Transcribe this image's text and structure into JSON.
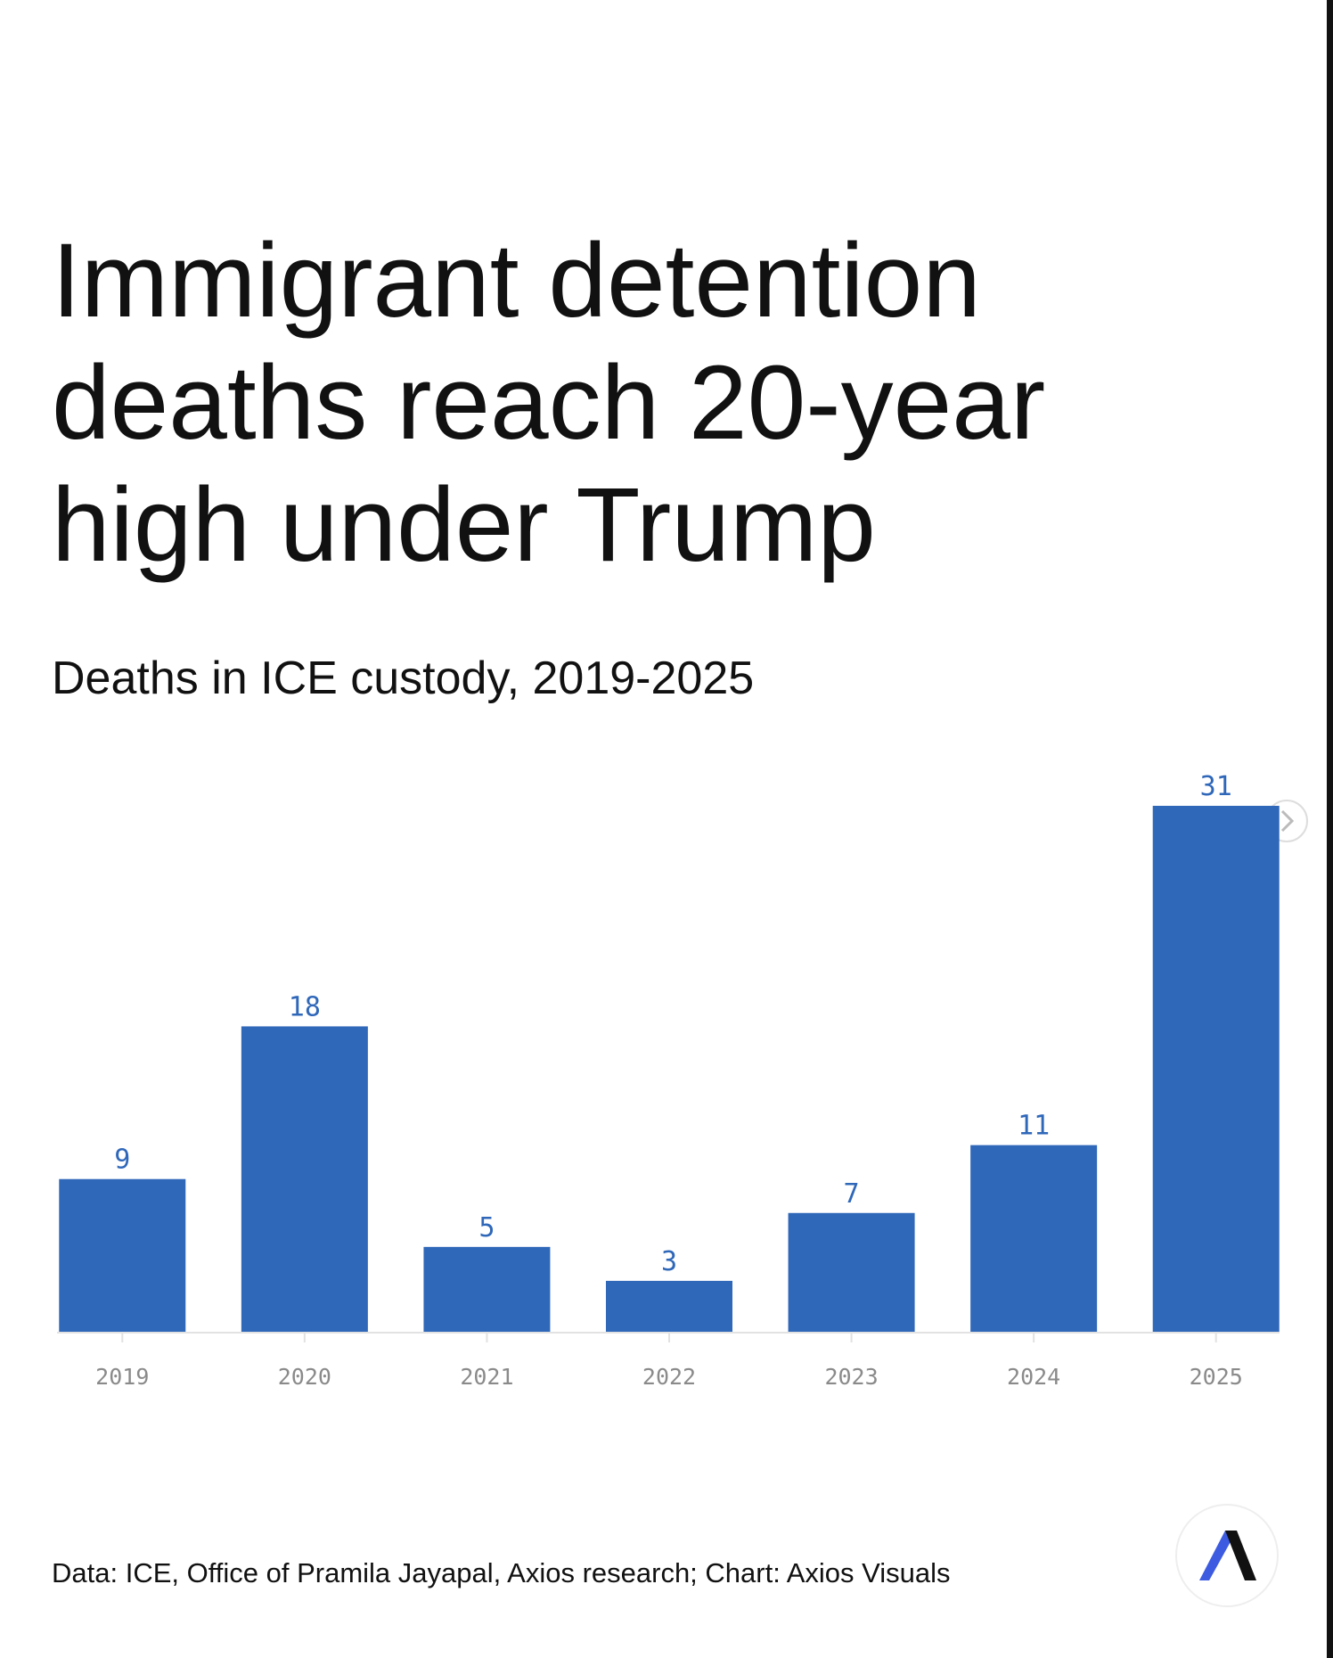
{
  "chart_data": {
    "type": "bar",
    "title": [
      "Immigrant detention",
      "deaths reach 20-year",
      "high under Trump"
    ],
    "subtitle": "Deaths in ICE custody, 2019-2025",
    "categories": [
      "2019",
      "2020",
      "2021",
      "2022",
      "2023",
      "2024",
      "2025"
    ],
    "values": [
      9,
      18,
      5,
      3,
      7,
      11,
      31
    ],
    "color": "#2f67b9",
    "ylim": [
      0,
      31
    ],
    "source": "Data: ICE, Office of Pramila Jayapal, Axios research; Chart: Axios Visuals"
  }
}
